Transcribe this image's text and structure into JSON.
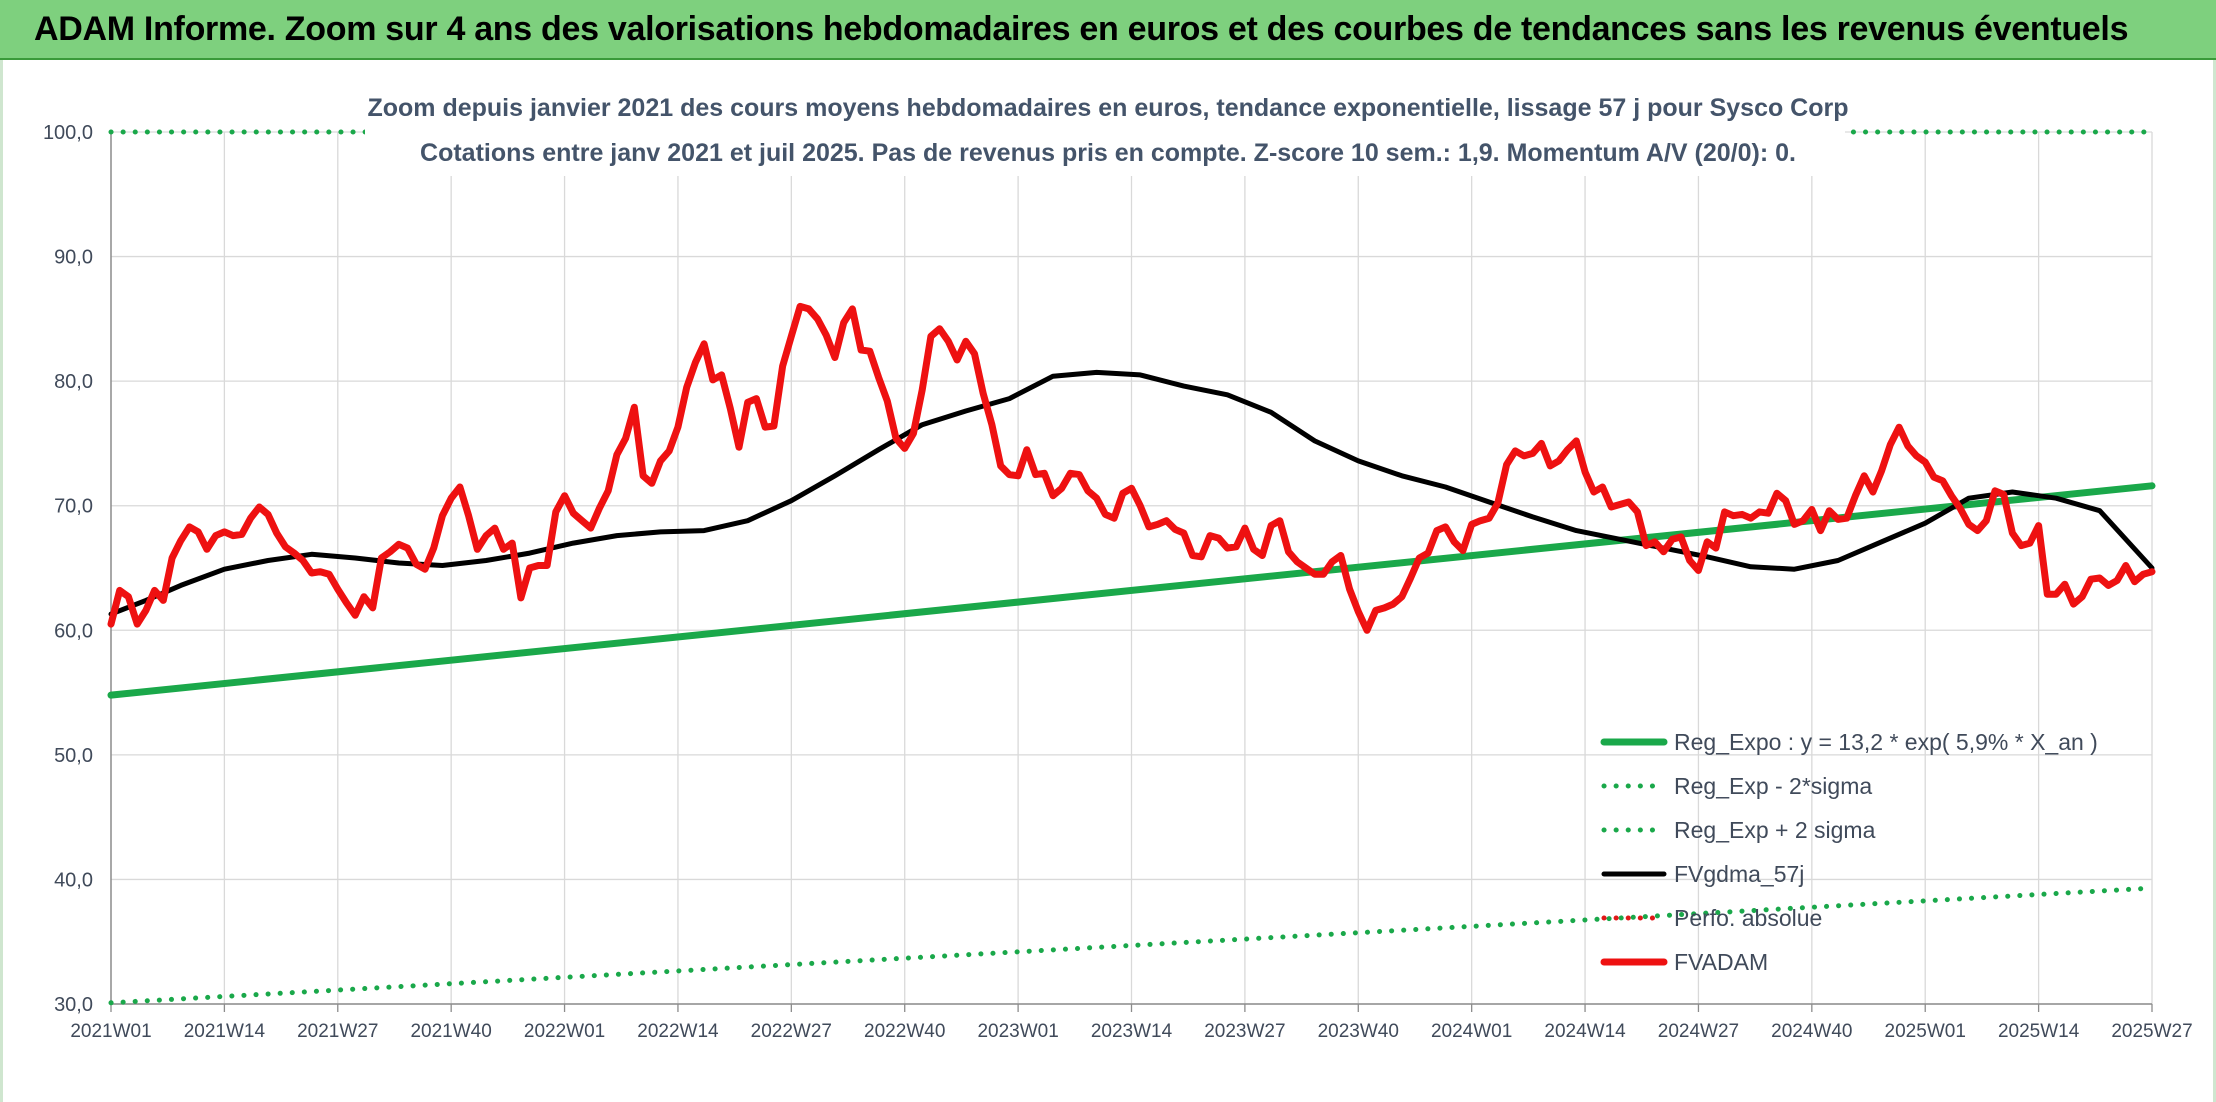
{
  "banner": {
    "title": "ADAM Informe. Zoom sur 4 ans des valorisations hebdomadaires en euros et des courbes de tendances sans les revenus éventuels"
  },
  "colors": {
    "banner_bg": "#7ed07e",
    "reg_expo": "#1aa84a",
    "fvgdma": "#000000",
    "perfo": "#e01818",
    "fvadam": "#ee1111",
    "grid": "#d9d9d9",
    "axis_text": "#404a5a",
    "title_text": "#44546a"
  },
  "chart_data": {
    "type": "line",
    "title": "Zoom depuis janvier 2021 des cours moyens hebdomadaires en euros, tendance exponentielle, lissage 57 j pour Sysco Corp",
    "subtitle": "Cotations entre janv 2021 et juil 2025. Pas de revenus pris en compte. Z-score 10 sem.: 1,9. Momentum A/V (20/0): 0.",
    "xlabel": "",
    "ylabel": "",
    "ylim": [
      30,
      100
    ],
    "yticks": [
      "30,0",
      "40,0",
      "50,0",
      "60,0",
      "70,0",
      "80,0",
      "90,0",
      "100,0"
    ],
    "x_tick_labels": [
      "2021W01",
      "2021W14",
      "2021W27",
      "2021W40",
      "2022W01",
      "2022W14",
      "2022W27",
      "2022W40",
      "2023W01",
      "2023W14",
      "2023W27",
      "2023W40",
      "2024W01",
      "2024W14",
      "2024W27",
      "2024W40",
      "2025W01",
      "2025W14",
      "2025W27"
    ],
    "grid": true,
    "legend_position": "bottom-right",
    "series": [
      {
        "name": "Reg_Expo : y = 13,2 * exp( 5,9% *  X_an )",
        "style": "solid-thick",
        "color": "#1aa84a",
        "points": [
          [
            0,
            54.8
          ],
          [
            234,
            71.6
          ]
        ]
      },
      {
        "name": "Reg_Exp - 2*sigma",
        "style": "dotted",
        "color": "#1aa84a",
        "points": [
          [
            0,
            30.1
          ],
          [
            234,
            39.3
          ]
        ]
      },
      {
        "name": "Reg_Exp + 2 sigma",
        "style": "dotted",
        "color": "#1aa84a",
        "points": [
          [
            0,
            100
          ],
          [
            234,
            100
          ]
        ]
      },
      {
        "name": "FVgdma_57j",
        "style": "solid",
        "color": "#000000",
        "points": [
          [
            0,
            61.3
          ],
          [
            4,
            62.4
          ],
          [
            8,
            63.6
          ],
          [
            13,
            64.9
          ],
          [
            18,
            65.6
          ],
          [
            23,
            66.1
          ],
          [
            28,
            65.8
          ],
          [
            33,
            65.4
          ],
          [
            38,
            65.2
          ],
          [
            43,
            65.6
          ],
          [
            48,
            66.2
          ],
          [
            53,
            67.0
          ],
          [
            58,
            67.6
          ],
          [
            63,
            67.9
          ],
          [
            68,
            68.0
          ],
          [
            73,
            68.8
          ],
          [
            78,
            70.4
          ],
          [
            83,
            72.4
          ],
          [
            88,
            74.5
          ],
          [
            93,
            76.5
          ],
          [
            98,
            77.6
          ],
          [
            103,
            78.6
          ],
          [
            108,
            80.4
          ],
          [
            113,
            80.7
          ],
          [
            118,
            80.5
          ],
          [
            123,
            79.6
          ],
          [
            128,
            78.9
          ],
          [
            133,
            77.5
          ],
          [
            138,
            75.2
          ],
          [
            143,
            73.6
          ],
          [
            148,
            72.4
          ],
          [
            153,
            71.5
          ],
          [
            158,
            70.3
          ],
          [
            163,
            69.1
          ],
          [
            168,
            68.0
          ],
          [
            173,
            67.3
          ],
          [
            178,
            66.6
          ],
          [
            183,
            65.9
          ],
          [
            188,
            65.1
          ],
          [
            193,
            64.9
          ],
          [
            198,
            65.6
          ],
          [
            203,
            67.1
          ],
          [
            208,
            68.6
          ],
          [
            213,
            70.6
          ],
          [
            218,
            71.1
          ],
          [
            223,
            70.6
          ],
          [
            228,
            69.6
          ],
          [
            234,
            65.0
          ]
        ]
      },
      {
        "name": "Perfo. absolue",
        "style": "dotted",
        "color": "#e01818",
        "points": []
      },
      {
        "name": "FVADAM",
        "style": "solid-thick",
        "color": "#ee1111",
        "points": [
          [
            0,
            60.5
          ],
          [
            1,
            63.2
          ],
          [
            2,
            62.7
          ],
          [
            3,
            60.5
          ],
          [
            4,
            61.6
          ],
          [
            5,
            63.2
          ],
          [
            6,
            62.4
          ],
          [
            7,
            65.8
          ],
          [
            8,
            67.2
          ],
          [
            9,
            68.3
          ],
          [
            10,
            67.9
          ],
          [
            11,
            66.5
          ],
          [
            12,
            67.6
          ],
          [
            13,
            67.9
          ],
          [
            14,
            67.6
          ],
          [
            15,
            67.7
          ],
          [
            16,
            69.0
          ],
          [
            17,
            69.9
          ],
          [
            18,
            69.3
          ],
          [
            19,
            67.8
          ],
          [
            20,
            66.7
          ],
          [
            21,
            66.2
          ],
          [
            22,
            65.6
          ],
          [
            23,
            64.6
          ],
          [
            24,
            64.7
          ],
          [
            25,
            64.5
          ],
          [
            26,
            63.3
          ],
          [
            27,
            62.2
          ],
          [
            28,
            61.2
          ],
          [
            29,
            62.7
          ],
          [
            30,
            61.8
          ],
          [
            31,
            65.8
          ],
          [
            32,
            66.3
          ],
          [
            33,
            66.9
          ],
          [
            34,
            66.6
          ],
          [
            35,
            65.3
          ],
          [
            36,
            64.9
          ],
          [
            37,
            66.6
          ],
          [
            38,
            69.2
          ],
          [
            39,
            70.6
          ],
          [
            40,
            71.5
          ],
          [
            41,
            69.2
          ],
          [
            42,
            66.5
          ],
          [
            43,
            67.6
          ],
          [
            44,
            68.2
          ],
          [
            45,
            66.5
          ],
          [
            46,
            67.0
          ],
          [
            47,
            62.6
          ],
          [
            48,
            65.0
          ],
          [
            49,
            65.2
          ],
          [
            50,
            65.2
          ],
          [
            51,
            69.5
          ],
          [
            52,
            70.8
          ],
          [
            53,
            69.4
          ],
          [
            54,
            68.8
          ],
          [
            55,
            68.2
          ],
          [
            56,
            69.8
          ],
          [
            57,
            71.2
          ],
          [
            58,
            74.1
          ],
          [
            59,
            75.4
          ],
          [
            60,
            77.9
          ],
          [
            61,
            72.4
          ],
          [
            62,
            71.8
          ],
          [
            63,
            73.6
          ],
          [
            64,
            74.4
          ],
          [
            65,
            76.3
          ],
          [
            66,
            79.5
          ],
          [
            67,
            81.5
          ],
          [
            68,
            83.0
          ],
          [
            69,
            80.1
          ],
          [
            70,
            80.5
          ],
          [
            71,
            77.8
          ],
          [
            72,
            74.7
          ],
          [
            73,
            78.3
          ],
          [
            74,
            78.6
          ],
          [
            75,
            76.3
          ],
          [
            76,
            76.4
          ],
          [
            77,
            81.2
          ],
          [
            78,
            83.6
          ],
          [
            79,
            86.0
          ],
          [
            80,
            85.8
          ],
          [
            81,
            85.0
          ],
          [
            82,
            83.7
          ],
          [
            83,
            81.9
          ],
          [
            84,
            84.7
          ],
          [
            85,
            85.8
          ],
          [
            86,
            82.5
          ],
          [
            87,
            82.4
          ],
          [
            88,
            80.3
          ],
          [
            89,
            78.4
          ],
          [
            90,
            75.4
          ],
          [
            91,
            74.6
          ],
          [
            92,
            75.8
          ],
          [
            93,
            79.3
          ],
          [
            94,
            83.6
          ],
          [
            95,
            84.2
          ],
          [
            96,
            83.2
          ],
          [
            97,
            81.7
          ],
          [
            98,
            83.2
          ],
          [
            99,
            82.2
          ],
          [
            100,
            79.0
          ],
          [
            101,
            76.5
          ],
          [
            102,
            73.2
          ],
          [
            103,
            72.5
          ],
          [
            104,
            72.4
          ],
          [
            105,
            74.5
          ],
          [
            106,
            72.5
          ],
          [
            107,
            72.6
          ],
          [
            108,
            70.8
          ],
          [
            109,
            71.4
          ],
          [
            110,
            72.6
          ],
          [
            111,
            72.5
          ],
          [
            112,
            71.2
          ],
          [
            113,
            70.6
          ],
          [
            114,
            69.3
          ],
          [
            115,
            69.0
          ],
          [
            116,
            71.0
          ],
          [
            117,
            71.4
          ],
          [
            118,
            70.0
          ],
          [
            119,
            68.3
          ],
          [
            120,
            68.5
          ],
          [
            121,
            68.8
          ],
          [
            122,
            68.1
          ],
          [
            123,
            67.8
          ],
          [
            124,
            66.0
          ],
          [
            125,
            65.9
          ],
          [
            126,
            67.6
          ],
          [
            127,
            67.4
          ],
          [
            128,
            66.6
          ],
          [
            129,
            66.7
          ],
          [
            130,
            68.2
          ],
          [
            131,
            66.5
          ],
          [
            132,
            66.0
          ],
          [
            133,
            68.4
          ],
          [
            134,
            68.8
          ],
          [
            135,
            66.3
          ],
          [
            136,
            65.5
          ],
          [
            137,
            65.0
          ],
          [
            138,
            64.5
          ],
          [
            139,
            64.5
          ],
          [
            140,
            65.5
          ],
          [
            141,
            66.0
          ],
          [
            142,
            63.3
          ],
          [
            143,
            61.5
          ],
          [
            144,
            60.0
          ],
          [
            145,
            61.6
          ],
          [
            146,
            61.8
          ],
          [
            147,
            62.1
          ],
          [
            148,
            62.7
          ],
          [
            149,
            64.2
          ],
          [
            150,
            65.8
          ],
          [
            151,
            66.2
          ],
          [
            152,
            68.0
          ],
          [
            153,
            68.3
          ],
          [
            154,
            67.1
          ],
          [
            155,
            66.4
          ],
          [
            156,
            68.5
          ],
          [
            157,
            68.8
          ],
          [
            158,
            69.0
          ],
          [
            159,
            70.2
          ],
          [
            160,
            73.3
          ],
          [
            161,
            74.4
          ],
          [
            162,
            74.0
          ],
          [
            163,
            74.2
          ],
          [
            164,
            75.0
          ],
          [
            165,
            73.2
          ],
          [
            166,
            73.6
          ],
          [
            167,
            74.5
          ],
          [
            168,
            75.2
          ],
          [
            169,
            72.7
          ],
          [
            170,
            71.1
          ],
          [
            171,
            71.5
          ],
          [
            172,
            69.9
          ],
          [
            173,
            70.1
          ],
          [
            174,
            70.3
          ],
          [
            175,
            69.5
          ],
          [
            176,
            66.8
          ],
          [
            177,
            67.1
          ],
          [
            178,
            66.3
          ],
          [
            179,
            67.3
          ],
          [
            180,
            67.5
          ],
          [
            181,
            65.6
          ],
          [
            182,
            64.8
          ],
          [
            183,
            67.1
          ],
          [
            184,
            66.6
          ],
          [
            185,
            69.5
          ],
          [
            186,
            69.2
          ],
          [
            187,
            69.3
          ],
          [
            188,
            69.0
          ],
          [
            189,
            69.5
          ],
          [
            190,
            69.4
          ],
          [
            191,
            71.0
          ],
          [
            192,
            70.4
          ],
          [
            193,
            68.5
          ],
          [
            194,
            68.8
          ],
          [
            195,
            69.7
          ],
          [
            196,
            68.0
          ],
          [
            197,
            69.6
          ],
          [
            198,
            68.9
          ],
          [
            199,
            69.0
          ],
          [
            200,
            70.8
          ],
          [
            201,
            72.4
          ],
          [
            202,
            71.1
          ],
          [
            203,
            72.8
          ],
          [
            204,
            74.9
          ],
          [
            205,
            76.3
          ],
          [
            206,
            74.8
          ],
          [
            207,
            74.0
          ],
          [
            208,
            73.5
          ],
          [
            209,
            72.3
          ],
          [
            210,
            72.0
          ],
          [
            211,
            70.8
          ],
          [
            212,
            69.8
          ],
          [
            213,
            68.5
          ],
          [
            214,
            68.0
          ],
          [
            215,
            68.8
          ],
          [
            216,
            71.2
          ],
          [
            217,
            70.9
          ],
          [
            218,
            67.8
          ],
          [
            219,
            66.8
          ],
          [
            220,
            67.0
          ],
          [
            221,
            68.4
          ],
          [
            222,
            62.9
          ],
          [
            223,
            62.9
          ],
          [
            224,
            63.7
          ],
          [
            225,
            62.1
          ],
          [
            226,
            62.7
          ],
          [
            227,
            64.1
          ],
          [
            228,
            64.2
          ],
          [
            229,
            63.6
          ],
          [
            230,
            64.0
          ],
          [
            231,
            65.2
          ],
          [
            232,
            63.9
          ],
          [
            233,
            64.5
          ],
          [
            234,
            64.7
          ]
        ]
      }
    ]
  }
}
